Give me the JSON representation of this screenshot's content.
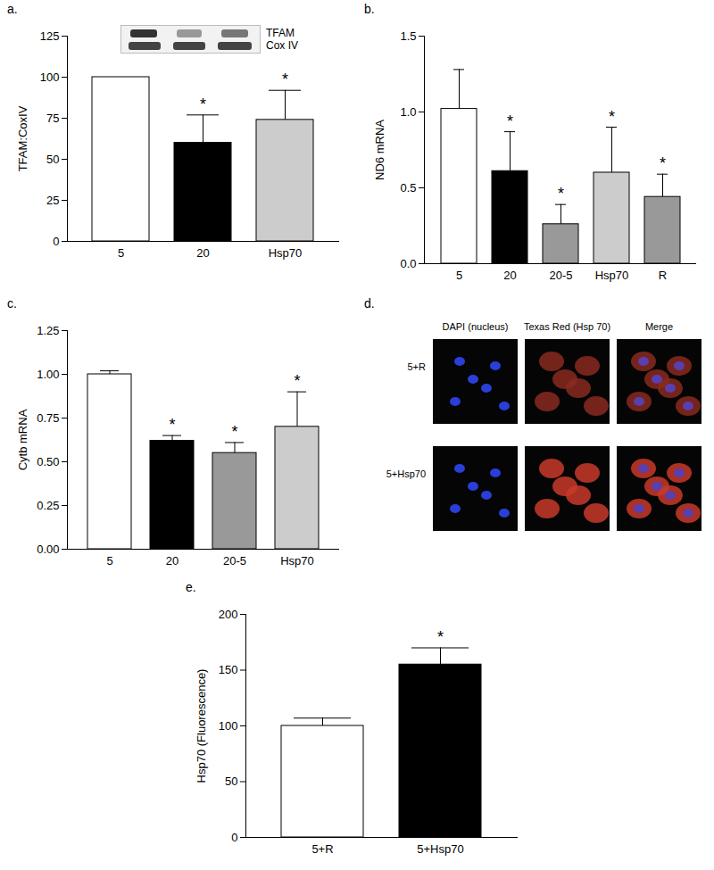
{
  "chart_data": [
    {
      "type": "bar",
      "title": "a.",
      "y_label": "TFAM:CoxIV",
      "categories": [
        "5",
        "20",
        "Hsp70"
      ],
      "values": [
        100,
        60,
        74
      ],
      "errors": [
        0,
        17,
        18
      ],
      "colors": [
        "#ffffff",
        "#000000",
        "#cccccc"
      ],
      "significance": [
        null,
        "*",
        "*"
      ],
      "ylim": [
        0,
        125
      ],
      "yticks": [
        0,
        25,
        50,
        75,
        100,
        125
      ],
      "inset_labels": [
        "TFAM",
        "Cox IV"
      ]
    },
    {
      "type": "bar",
      "title": "b.",
      "y_label": "ND6 mRNA",
      "categories": [
        "5",
        "20",
        "20-5",
        "Hsp70",
        "R"
      ],
      "values": [
        1.02,
        0.61,
        0.26,
        0.6,
        0.44
      ],
      "errors": [
        0.26,
        0.26,
        0.13,
        0.3,
        0.15
      ],
      "colors": [
        "#ffffff",
        "#000000",
        "#999999",
        "#cccccc",
        "#999999"
      ],
      "significance": [
        null,
        "*",
        "*",
        "*",
        "*"
      ],
      "ylim": [
        0,
        1.5
      ],
      "yticks": [
        {
          "value": 0,
          "label": "0.0"
        },
        {
          "value": 0.5,
          "label": "0.5"
        },
        {
          "value": 1,
          "label": "1.0"
        },
        {
          "value": 1.5,
          "label": "1.5"
        }
      ]
    },
    {
      "type": "bar",
      "title": "c.",
      "y_label": "Cytb mRNA",
      "categories": [
        "5",
        "20",
        "20-5",
        "Hsp70"
      ],
      "values": [
        1.0,
        0.62,
        0.55,
        0.7
      ],
      "errors": [
        0.02,
        0.03,
        0.06,
        0.2
      ],
      "colors": [
        "#ffffff",
        "#000000",
        "#999999",
        "#cccccc"
      ],
      "significance": [
        null,
        "*",
        "*",
        "*"
      ],
      "ylim": [
        0,
        1.25
      ],
      "yticks": [
        {
          "value": 0,
          "label": "0.00"
        },
        {
          "value": 0.25,
          "label": "0.25"
        },
        {
          "value": 0.5,
          "label": "0.50"
        },
        {
          "value": 0.75,
          "label": "0.75"
        },
        {
          "value": 1,
          "label": "1.00"
        },
        {
          "value": 1.25,
          "label": "1.25"
        }
      ]
    },
    {
      "type": "bar",
      "title": "e.",
      "y_label": "Hsp70 (Fluorescence)",
      "categories": [
        "5+R",
        "5+Hsp70"
      ],
      "values": [
        100,
        155
      ],
      "errors": [
        7,
        15
      ],
      "colors": [
        "#ffffff",
        "#000000"
      ],
      "significance": [
        null,
        "*"
      ],
      "ylim": [
        0,
        200
      ],
      "yticks": [
        0,
        50,
        100,
        150,
        200
      ]
    }
  ],
  "panel_d": {
    "title": "d.",
    "columns": [
      "DAPI (nucleus)",
      "Texas Red (Hsp 70)",
      "Merge"
    ],
    "rows": [
      "5+R",
      "5+Hsp70"
    ]
  }
}
